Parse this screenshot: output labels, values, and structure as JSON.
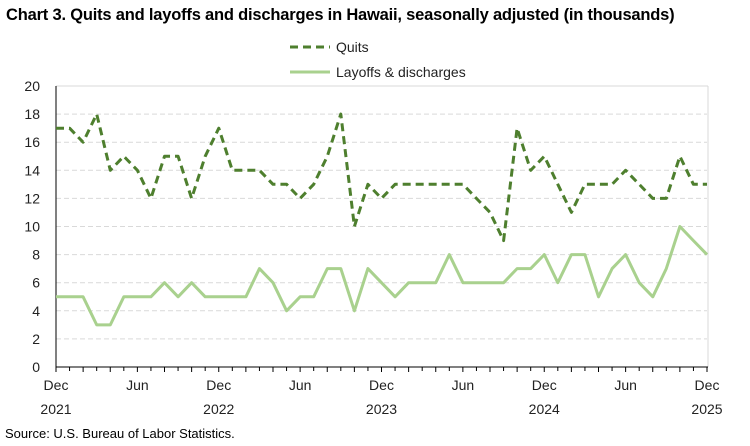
{
  "chart_data": {
    "type": "line",
    "title": "Chart 3. Quits and layoffs and discharges in Hawaii, seasonally adjusted (in thousands)",
    "source": "Source: U.S. Bureau of Labor Statistics.",
    "xlabel": "",
    "ylabel": "",
    "ylim": [
      0,
      20
    ],
    "yticks": [
      0,
      2,
      4,
      6,
      8,
      10,
      12,
      14,
      16,
      18,
      20
    ],
    "grid": true,
    "legend": "top-center",
    "x": [
      "2021-12",
      "2022-01",
      "2022-02",
      "2022-03",
      "2022-04",
      "2022-05",
      "2022-06",
      "2022-07",
      "2022-08",
      "2022-09",
      "2022-10",
      "2022-11",
      "2022-12",
      "2023-01",
      "2023-02",
      "2023-03",
      "2023-04",
      "2023-05",
      "2023-06",
      "2023-07",
      "2023-08",
      "2023-09",
      "2023-10",
      "2023-11",
      "2023-12",
      "2024-01",
      "2024-02",
      "2024-03",
      "2024-04",
      "2024-05",
      "2024-06",
      "2024-07",
      "2024-08",
      "2024-09",
      "2024-10",
      "2024-11",
      "2024-12",
      "2025-01",
      "2025-02",
      "2025-03",
      "2025-04",
      "2025-05",
      "2025-06",
      "2025-07",
      "2025-08",
      "2025-09",
      "2025-10",
      "2025-11",
      "2025-12"
    ],
    "xtick_labels": [
      {
        "month": "Dec",
        "year": "2021"
      },
      {
        "month": "Jun",
        "year": ""
      },
      {
        "month": "Dec",
        "year": "2022"
      },
      {
        "month": "Jun",
        "year": ""
      },
      {
        "month": "Dec",
        "year": "2023"
      },
      {
        "month": "Jun",
        "year": ""
      },
      {
        "month": "Dec",
        "year": "2024"
      },
      {
        "month": "Jun",
        "year": ""
      },
      {
        "month": "Dec",
        "year": "2025"
      }
    ],
    "series": [
      {
        "name": "Quits",
        "color": "#4e7f2e",
        "style": "dashed",
        "values": [
          17,
          17,
          16,
          18,
          14,
          15,
          14,
          12,
          15,
          15,
          12,
          15,
          17,
          14,
          14,
          14,
          13,
          13,
          12,
          13,
          15,
          18,
          10,
          13,
          12,
          13,
          13,
          13,
          13,
          13,
          13,
          12,
          11,
          9,
          17,
          14,
          15,
          13,
          11,
          13,
          13,
          13,
          14,
          13,
          12,
          12,
          15,
          13,
          13
        ]
      },
      {
        "name": "Layoffs & discharges",
        "color": "#a9d18e",
        "style": "solid",
        "values": [
          5,
          5,
          5,
          3,
          3,
          5,
          5,
          5,
          6,
          5,
          6,
          5,
          5,
          5,
          5,
          7,
          6,
          4,
          5,
          5,
          7,
          7,
          4,
          7,
          6,
          5,
          6,
          6,
          6,
          8,
          6,
          6,
          6,
          6,
          7,
          7,
          8,
          6,
          8,
          8,
          5,
          7,
          8,
          6,
          5,
          7,
          10,
          9,
          8
        ]
      }
    ]
  }
}
